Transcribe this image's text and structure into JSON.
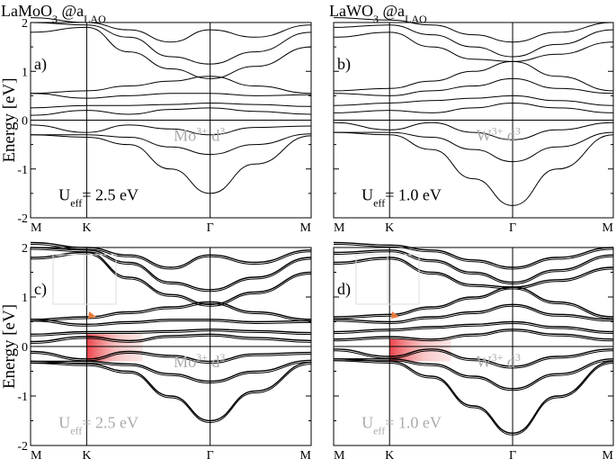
{
  "chart_data": [
    {
      "type": "line",
      "panel_label": "a)",
      "title_main": "LaMoO",
      "title_sub1": "3",
      "title_mid": " @a",
      "title_sub2": "LAO",
      "ylabel": "Energy [eV]",
      "ylim": [
        -2,
        2
      ],
      "xlim": [
        0,
        1
      ],
      "yticks": [
        "-2",
        "-1",
        "0",
        "1",
        "2"
      ],
      "xticks": [
        {
          "label": "M",
          "x": 0
        },
        {
          "label": "K",
          "x": 0.2
        },
        {
          "label": "Γ",
          "x": 0.64
        },
        {
          "label": "M",
          "x": 1
        }
      ],
      "annotation": {
        "base": "Mo",
        "sup": "3+",
        "tail": "  d",
        "tail_sup": "3",
        "color": "#aaaaaa"
      },
      "ueff": {
        "base": "U",
        "sub": "eff",
        "tail": "= 2.5 eV",
        "color": "#000000"
      },
      "highlight": false,
      "series": [
        {
          "x": [
            0,
            0.2,
            0.35,
            0.5,
            0.64,
            0.8,
            1
          ],
          "y": [
            -0.3,
            -0.35,
            -0.5,
            -1.0,
            -1.5,
            -0.9,
            -0.32
          ]
        },
        {
          "x": [
            0,
            0.2,
            0.35,
            0.5,
            0.64,
            0.8,
            1
          ],
          "y": [
            -0.3,
            -0.3,
            -0.35,
            -0.55,
            -0.7,
            -0.5,
            -0.28
          ]
        },
        {
          "x": [
            0,
            0.2,
            0.35,
            0.5,
            0.64,
            0.8,
            1
          ],
          "y": [
            -0.1,
            -0.25,
            -0.1,
            -0.18,
            -0.3,
            -0.15,
            -0.12
          ]
        },
        {
          "x": [
            0,
            0.2,
            0.35,
            0.5,
            0.64,
            0.8,
            1
          ],
          "y": [
            0.1,
            0.2,
            0.12,
            0.22,
            0.25,
            0.18,
            0.12
          ]
        },
        {
          "x": [
            0,
            0.2,
            0.35,
            0.5,
            0.64,
            0.8,
            1
          ],
          "y": [
            0.25,
            0.3,
            0.3,
            0.32,
            0.35,
            0.32,
            0.28
          ]
        },
        {
          "x": [
            0,
            0.2,
            0.35,
            0.5,
            0.64,
            0.8,
            1
          ],
          "y": [
            0.55,
            0.45,
            0.5,
            0.55,
            0.55,
            0.5,
            0.52
          ]
        },
        {
          "x": [
            0,
            0.2,
            0.35,
            0.5,
            0.64,
            0.8,
            1
          ],
          "y": [
            0.55,
            0.6,
            0.7,
            0.8,
            0.9,
            0.7,
            0.55
          ]
        },
        {
          "x": [
            0,
            0.2,
            0.35,
            0.5,
            0.64,
            0.8,
            1
          ],
          "y": [
            1.8,
            1.9,
            1.4,
            1.05,
            0.85,
            1.1,
            1.5
          ]
        },
        {
          "x": [
            0,
            0.2,
            0.35,
            0.5,
            0.64,
            0.8,
            1
          ],
          "y": [
            2.0,
            1.95,
            1.7,
            1.3,
            1.15,
            1.4,
            1.8
          ]
        },
        {
          "x": [
            0,
            0.2,
            0.35,
            0.5,
            0.64,
            0.8,
            1
          ],
          "y": [
            2.1,
            2.0,
            1.85,
            1.6,
            1.85,
            1.7,
            1.95
          ]
        }
      ]
    },
    {
      "type": "line",
      "panel_label": "b)",
      "title_main": "LaWO",
      "title_sub1": "3",
      "title_mid": " @a",
      "title_sub2": "LAO",
      "ylabel": "",
      "ylim": [
        -2,
        2
      ],
      "xlim": [
        0,
        1
      ],
      "yticks": [],
      "xticks": [
        {
          "label": "M",
          "x": 0
        },
        {
          "label": "K",
          "x": 0.2
        },
        {
          "label": "Γ",
          "x": 0.64
        },
        {
          "label": "M",
          "x": 1
        }
      ],
      "annotation": {
        "base": "W",
        "sup": "3+",
        "tail": "  d",
        "tail_sup": "3",
        "color": "#aaaaaa"
      },
      "ueff": {
        "base": "U",
        "sub": "eff",
        "tail": "= 1.0 eV",
        "color": "#000000"
      },
      "highlight": false,
      "series": [
        {
          "x": [
            0,
            0.2,
            0.35,
            0.5,
            0.64,
            0.8,
            1
          ],
          "y": [
            -0.25,
            -0.3,
            -0.6,
            -1.2,
            -1.75,
            -1.0,
            -0.3
          ]
        },
        {
          "x": [
            0,
            0.2,
            0.35,
            0.5,
            0.64,
            0.8,
            1
          ],
          "y": [
            -0.25,
            -0.25,
            -0.35,
            -0.6,
            -0.85,
            -0.55,
            -0.25
          ]
        },
        {
          "x": [
            0,
            0.2,
            0.35,
            0.5,
            0.64,
            0.8,
            1
          ],
          "y": [
            -0.05,
            -0.2,
            -0.05,
            -0.25,
            -0.4,
            -0.2,
            -0.05
          ]
        },
        {
          "x": [
            0,
            0.2,
            0.35,
            0.5,
            0.64,
            0.8,
            1
          ],
          "y": [
            0.15,
            0.2,
            0.15,
            0.25,
            0.35,
            0.25,
            0.15
          ]
        },
        {
          "x": [
            0,
            0.2,
            0.35,
            0.5,
            0.64,
            0.8,
            1
          ],
          "y": [
            0.3,
            0.35,
            0.4,
            0.45,
            0.5,
            0.4,
            0.3
          ]
        },
        {
          "x": [
            0,
            0.2,
            0.35,
            0.5,
            0.64,
            0.8,
            1
          ],
          "y": [
            0.55,
            0.5,
            0.6,
            0.7,
            0.85,
            0.65,
            0.55
          ]
        },
        {
          "x": [
            0,
            0.2,
            0.35,
            0.5,
            0.64,
            0.8,
            1
          ],
          "y": [
            0.6,
            0.65,
            0.8,
            1.0,
            1.2,
            0.9,
            0.6
          ]
        },
        {
          "x": [
            0,
            0.2,
            0.35,
            0.5,
            0.64,
            0.8,
            1
          ],
          "y": [
            1.7,
            1.8,
            1.5,
            1.25,
            1.2,
            1.35,
            1.6
          ]
        },
        {
          "x": [
            0,
            0.2,
            0.35,
            0.5,
            0.64,
            0.8,
            1
          ],
          "y": [
            1.9,
            1.95,
            1.75,
            1.5,
            1.3,
            1.55,
            1.85
          ]
        },
        {
          "x": [
            0,
            0.2,
            0.35,
            0.5,
            0.64,
            0.8,
            1
          ],
          "y": [
            2.1,
            2.05,
            1.95,
            1.75,
            1.6,
            1.8,
            2.0
          ]
        }
      ]
    },
    {
      "type": "line",
      "panel_label": "c)",
      "title_main": "",
      "title_sub1": "",
      "title_mid": "",
      "title_sub2": "",
      "ylabel": "Energy [eV]",
      "ylim": [
        -2,
        2
      ],
      "xlim": [
        0,
        1
      ],
      "yticks": [
        "-2",
        "-1",
        "0",
        "1",
        "2"
      ],
      "xticks": [
        {
          "label": "M",
          "x": 0
        },
        {
          "label": "K",
          "x": 0.2
        },
        {
          "label": "Γ",
          "x": 0.64
        },
        {
          "label": "M",
          "x": 1
        }
      ],
      "annotation": {
        "base": "Mo",
        "sup": "3+",
        "tail": "  d",
        "tail_sup": "3",
        "color": "#aaaaaa"
      },
      "ueff": {
        "base": "U",
        "sub": "eff",
        "tail": "= 2.5 eV",
        "color": "#aaaaaa"
      },
      "highlight": true,
      "highlight_region": {
        "x": [
          0.2,
          0.4
        ],
        "y": [
          -0.3,
          0.25
        ]
      },
      "series": [
        {
          "x": [
            0,
            0.2,
            0.35,
            0.5,
            0.64,
            0.8,
            1
          ],
          "y": [
            -0.3,
            -0.35,
            -0.5,
            -1.0,
            -1.5,
            -0.9,
            -0.32
          ]
        },
        {
          "x": [
            0,
            0.2,
            0.35,
            0.5,
            0.64,
            0.8,
            1
          ],
          "y": [
            -0.3,
            -0.3,
            -0.35,
            -0.55,
            -0.7,
            -0.5,
            -0.28
          ]
        },
        {
          "x": [
            0,
            0.2,
            0.35,
            0.5,
            0.64,
            0.8,
            1
          ],
          "y": [
            -0.1,
            -0.25,
            -0.1,
            -0.18,
            -0.3,
            -0.15,
            -0.12
          ]
        },
        {
          "x": [
            0,
            0.2,
            0.35,
            0.5,
            0.64,
            0.8,
            1
          ],
          "y": [
            0.1,
            0.2,
            0.12,
            0.22,
            0.25,
            0.18,
            0.12
          ]
        },
        {
          "x": [
            0,
            0.2,
            0.35,
            0.5,
            0.64,
            0.8,
            1
          ],
          "y": [
            0.25,
            0.3,
            0.3,
            0.32,
            0.35,
            0.32,
            0.28
          ]
        },
        {
          "x": [
            0,
            0.2,
            0.35,
            0.5,
            0.64,
            0.8,
            1
          ],
          "y": [
            0.55,
            0.45,
            0.5,
            0.55,
            0.55,
            0.5,
            0.52
          ]
        },
        {
          "x": [
            0,
            0.2,
            0.35,
            0.5,
            0.64,
            0.8,
            1
          ],
          "y": [
            0.55,
            0.6,
            0.7,
            0.8,
            0.9,
            0.7,
            0.55
          ]
        },
        {
          "x": [
            0,
            0.2,
            0.35,
            0.5,
            0.64,
            0.8,
            1
          ],
          "y": [
            1.8,
            1.9,
            1.4,
            1.05,
            0.85,
            1.1,
            1.5
          ]
        },
        {
          "x": [
            0,
            0.2,
            0.35,
            0.5,
            0.64,
            0.8,
            1
          ],
          "y": [
            2.0,
            1.95,
            1.7,
            1.3,
            1.15,
            1.4,
            1.8
          ]
        },
        {
          "x": [
            0,
            0.2,
            0.35,
            0.5,
            0.64,
            0.8,
            1
          ],
          "y": [
            2.1,
            2.0,
            1.85,
            1.6,
            1.85,
            1.7,
            1.95
          ]
        }
      ]
    },
    {
      "type": "line",
      "panel_label": "d)",
      "title_main": "",
      "title_sub1": "",
      "title_mid": "",
      "title_sub2": "",
      "ylabel": "",
      "ylim": [
        -2,
        2
      ],
      "xlim": [
        0,
        1
      ],
      "yticks": [],
      "xticks": [
        {
          "label": "M",
          "x": 0
        },
        {
          "label": "K",
          "x": 0.2
        },
        {
          "label": "Γ",
          "x": 0.64
        },
        {
          "label": "M",
          "x": 1
        }
      ],
      "annotation": {
        "base": "W",
        "sup": "3+",
        "tail": "  d",
        "tail_sup": "3",
        "color": "#aaaaaa"
      },
      "ueff": {
        "base": "U",
        "sub": "eff",
        "tail": "= 1.0 eV",
        "color": "#aaaaaa"
      },
      "highlight": true,
      "highlight_region": {
        "x": [
          0.2,
          0.42
        ],
        "y": [
          -0.3,
          0.15
        ]
      },
      "series": [
        {
          "x": [
            0,
            0.2,
            0.35,
            0.5,
            0.64,
            0.8,
            1
          ],
          "y": [
            -0.25,
            -0.3,
            -0.6,
            -1.2,
            -1.75,
            -1.0,
            -0.3
          ]
        },
        {
          "x": [
            0,
            0.2,
            0.35,
            0.5,
            0.64,
            0.8,
            1
          ],
          "y": [
            -0.25,
            -0.25,
            -0.35,
            -0.6,
            -0.85,
            -0.55,
            -0.25
          ]
        },
        {
          "x": [
            0,
            0.2,
            0.35,
            0.5,
            0.64,
            0.8,
            1
          ],
          "y": [
            -0.05,
            -0.2,
            -0.05,
            -0.25,
            -0.4,
            -0.2,
            -0.05
          ]
        },
        {
          "x": [
            0,
            0.2,
            0.35,
            0.5,
            0.64,
            0.8,
            1
          ],
          "y": [
            0.15,
            0.2,
            0.15,
            0.25,
            0.35,
            0.25,
            0.15
          ]
        },
        {
          "x": [
            0,
            0.2,
            0.35,
            0.5,
            0.64,
            0.8,
            1
          ],
          "y": [
            0.3,
            0.35,
            0.4,
            0.45,
            0.5,
            0.4,
            0.3
          ]
        },
        {
          "x": [
            0,
            0.2,
            0.35,
            0.5,
            0.64,
            0.8,
            1
          ],
          "y": [
            0.55,
            0.5,
            0.6,
            0.7,
            0.85,
            0.65,
            0.55
          ]
        },
        {
          "x": [
            0,
            0.2,
            0.35,
            0.5,
            0.64,
            0.8,
            1
          ],
          "y": [
            0.6,
            0.65,
            0.8,
            1.0,
            1.2,
            0.9,
            0.6
          ]
        },
        {
          "x": [
            0,
            0.2,
            0.35,
            0.5,
            0.64,
            0.8,
            1
          ],
          "y": [
            1.7,
            1.8,
            1.5,
            1.25,
            1.2,
            1.35,
            1.6
          ]
        },
        {
          "x": [
            0,
            0.2,
            0.35,
            0.5,
            0.64,
            0.8,
            1
          ],
          "y": [
            1.9,
            1.95,
            1.75,
            1.5,
            1.3,
            1.55,
            1.85
          ]
        },
        {
          "x": [
            0,
            0.2,
            0.35,
            0.5,
            0.64,
            0.8,
            1
          ],
          "y": [
            2.1,
            2.05,
            1.95,
            1.75,
            1.6,
            1.8,
            2.0
          ]
        }
      ]
    }
  ]
}
